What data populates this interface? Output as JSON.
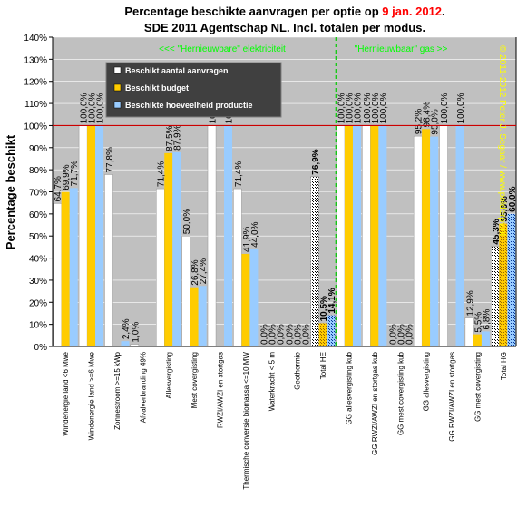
{
  "colors": {
    "plot_bg": "#c0c0c0",
    "aanvragen": "#ffffff",
    "budget": "#ffcc00",
    "productie": "#99ccff",
    "total_aanvragen": "#ffffff",
    "total_budget": "#ffcc00",
    "total_productie": "#99ccff",
    "reference_line": "#cc0000",
    "divider_line": "#00cc00",
    "annotation_green": "#00ff00",
    "copyright_yellow": "#ffff00",
    "date_red": "#ff0000",
    "legend_bg": "#404040"
  },
  "chart_data": {
    "type": "bar",
    "title_part1": "Percentage beschikte aanvragen per optie op ",
    "title_date": "9 jan. 2012",
    "title_part2": ".",
    "subtitle": "SDE 2011 Agentschap NL. Incl. totalen per modus.",
    "ylabel": "Percentage beschikt",
    "ylim": [
      0,
      140
    ],
    "y_ticks": [
      "0%",
      "10%",
      "20%",
      "30%",
      "40%",
      "50%",
      "60%",
      "70%",
      "80%",
      "90%",
      "100%",
      "110%",
      "120%",
      "130%",
      "140%"
    ],
    "reference_line": 100,
    "annotation_electric": "<<< \"Hernieuwbare\" elektriciteit",
    "annotation_gas": "\"Hernieuwbaar\" gas >>",
    "copyright": "© 2011-2012 Peter J. Segaar / www.polderpv.nl",
    "categories": [
      "Windenergie land <6 Mwe",
      "Windenergie land >=6 Mwe",
      "Zonnestroom >=15 kWp",
      "Afvalverbranding 49%",
      "Allesvergisting",
      "Mest covergisting",
      "RWZI/AWZI en stortgas",
      "Thermische conversie biomassa <=10 MW",
      "Waterkracht < 5 m",
      "Geothermie",
      "Total HE",
      "GG allesvergisting kub",
      "GG RWZI/AWZI en stortgas kub",
      "GG mest covergisting kub",
      "GG allesvergisting",
      "GG RWZI/AWZI en stortgas",
      "GG mest covergisting",
      "Total HG"
    ],
    "series": [
      {
        "name": "Beschikt aantal aanvragen",
        "values": [
          64.7,
          100.0,
          77.8,
          1.0,
          71.4,
          50.0,
          100.0,
          71.4,
          0.0,
          0.0,
          76.9,
          100.0,
          100.0,
          0.0,
          95.2,
          100.0,
          12.9,
          45.3
        ],
        "labels": [
          "64,7%",
          "100,0%",
          "77,8%",
          "1,0%",
          "71,4%",
          "50,0%",
          "100,0%",
          "71,4%",
          "0,0%",
          "0,0%",
          "76,9%",
          "100,0%",
          "100,0%",
          "0,0%",
          "95,2%",
          "100,0%",
          "12,9%",
          "45,3%"
        ]
      },
      {
        "name": "Beschikt budget",
        "values": [
          69.9,
          100.0,
          0.0,
          0.0,
          87.5,
          26.8,
          0.0,
          41.9,
          0.0,
          0.0,
          10.5,
          100.0,
          100.0,
          0.0,
          98.4,
          0.0,
          5.5,
          55.6
        ],
        "labels": [
          "69,9%",
          "100,0%",
          "",
          "",
          "87,5%",
          "26,8%",
          "",
          "41,9%",
          "0,0%",
          "0,0%",
          "10,5%",
          "100,0%",
          "100,0%",
          "0,0%",
          "98,4%",
          "",
          "5,5%",
          "55,6%"
        ]
      },
      {
        "name": "Beschikte hoeveelheid productie",
        "values": [
          71.7,
          100.0,
          2.4,
          0.0,
          87.9,
          27.4,
          100.0,
          44.0,
          0.0,
          0.0,
          14.1,
          100.0,
          100.0,
          0.0,
          95.0,
          100.0,
          6.8,
          60.0
        ],
        "labels": [
          "71,7%",
          "100,0%",
          "2,4%",
          "",
          "87,9%",
          "27,4%",
          "100,0%",
          "44,0%",
          "0,0%",
          "0,0%",
          "14,1%",
          "100,0%",
          "100,0%",
          "0,0%",
          "95,0%",
          "100,0%",
          "6,8%",
          "60,0%"
        ]
      }
    ],
    "total_indices": [
      10,
      17
    ],
    "legend_position": "top-left"
  }
}
